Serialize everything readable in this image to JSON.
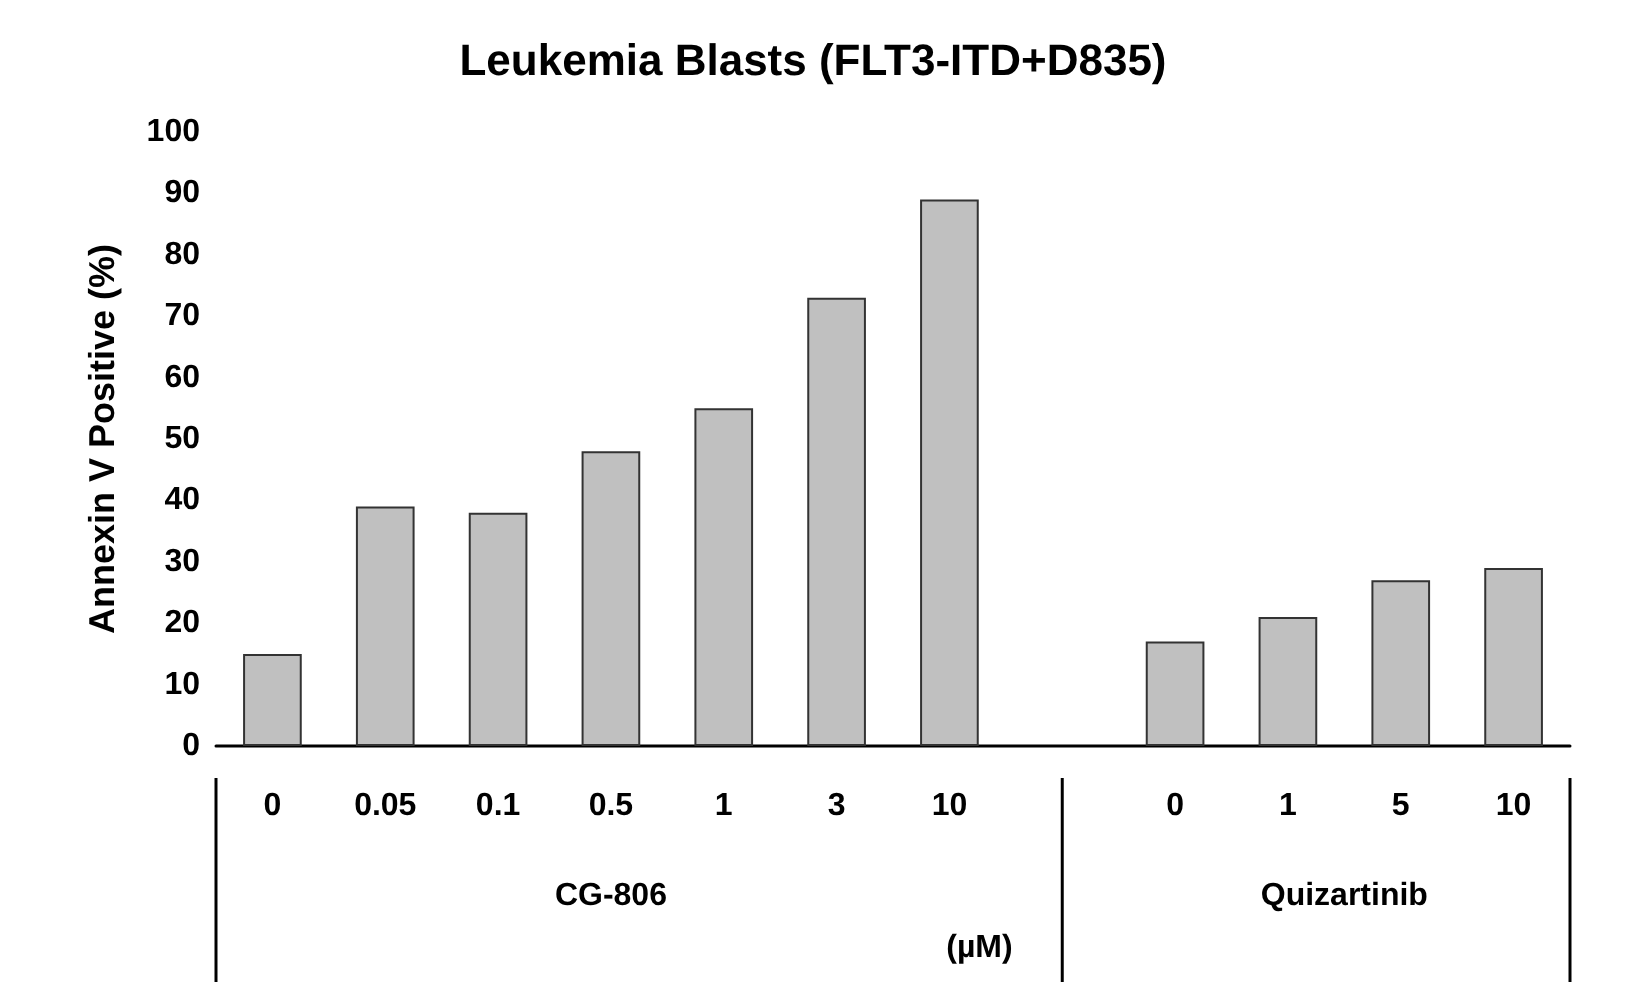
{
  "chart_data": {
    "type": "bar",
    "title": "Leukemia Blasts (FLT3-ITD+D835)",
    "ylabel": "Annexin V Positive (%)",
    "categories": [
      "0",
      "0.05",
      "0.1",
      "0.5",
      "1",
      "3",
      "10",
      null,
      "0",
      "1",
      "5",
      "10"
    ],
    "values": [
      15,
      39,
      38,
      48,
      55,
      73,
      89,
      null,
      17,
      21,
      27,
      29
    ],
    "color": "#c0c0c0",
    "ylim": [
      0,
      100
    ],
    "yticks": [
      0,
      10,
      20,
      30,
      40,
      50,
      60,
      70,
      80,
      90,
      100
    ],
    "grid": false,
    "annotations": [
      "CG-806",
      "Quizartinib",
      "(µM)"
    ]
  }
}
